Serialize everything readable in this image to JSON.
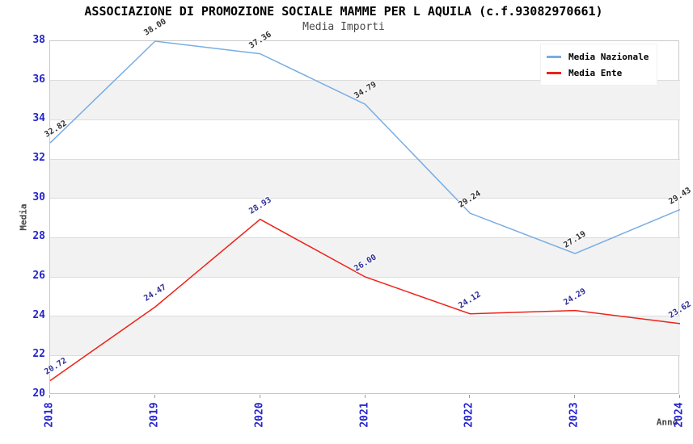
{
  "title": "ASSOCIAZIONE DI PROMOZIONE SOCIALE MAMME PER L AQUILA (c.f.93082970661)",
  "subtitle": "Media Importi",
  "chart_data": {
    "type": "line",
    "x": [
      "2018",
      "2019",
      "2020",
      "2021",
      "2022",
      "2023",
      "2024"
    ],
    "series": [
      {
        "name": "Media Nazionale",
        "color": "#78ade3",
        "label_color": "#333333",
        "values": [
          32.82,
          38.0,
          37.36,
          34.79,
          29.24,
          27.19,
          29.43
        ],
        "labels": [
          "32.82",
          "38.00",
          "37.36",
          "34.79",
          "29.24",
          "27.19",
          "29.43"
        ]
      },
      {
        "name": "Media Ente",
        "color": "#ee2218",
        "label_color": "#2f2f99",
        "values": [
          20.72,
          24.47,
          28.93,
          26.0,
          24.12,
          24.29,
          23.62
        ],
        "labels": [
          "20.72",
          "24.47",
          "28.93",
          "26.00",
          "24.12",
          "24.29",
          "23.62"
        ]
      }
    ],
    "xlabel": "Anno",
    "ylabel": "Media",
    "ylim": [
      20,
      38
    ],
    "ytick_step": 2,
    "yticks": [
      "20",
      "22",
      "24",
      "26",
      "28",
      "30",
      "32",
      "34",
      "36",
      "38"
    ],
    "legend_position": "top-right",
    "grid": "alternating-horizontal-bands",
    "band_color": "#f2f2f2",
    "gridline_color": "#dcdcdc",
    "tick_label_color": "#2424cf",
    "axis_title_color": "#444444"
  }
}
